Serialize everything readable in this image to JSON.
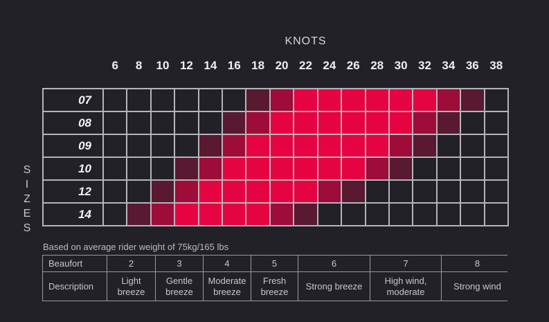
{
  "colors": {
    "background": "#232128",
    "gridline": "#b6b5bb",
    "cell_none": "#232128",
    "cell_low": "#581931",
    "cell_medium": "#9e0c39",
    "cell_ideal": "#e60342",
    "text_bright": "#efeef2",
    "text_dim": "#c8c7cc"
  },
  "axes": {
    "x_title": "KNOTS",
    "y_title": "SIZES",
    "y_title_letters": [
      "S",
      "I",
      "Z",
      "E",
      "S"
    ]
  },
  "note": "Based on average rider weight of 75kg/165 lbs",
  "chart_data": {
    "type": "heatmap",
    "title": "KNOTS",
    "xlabel": "KNOTS",
    "ylabel": "SIZES",
    "x": [
      6,
      8,
      10,
      12,
      14,
      16,
      18,
      20,
      22,
      24,
      26,
      28,
      30,
      32,
      34,
      36,
      38
    ],
    "y": [
      "07",
      "08",
      "09",
      "10",
      "12",
      "14"
    ],
    "values": [
      [
        0,
        0,
        0,
        0,
        0,
        0,
        1,
        2,
        3,
        3,
        3,
        3,
        3,
        3,
        2,
        1,
        0
      ],
      [
        0,
        0,
        0,
        0,
        0,
        1,
        2,
        3,
        3,
        3,
        3,
        3,
        3,
        2,
        1,
        0,
        0
      ],
      [
        0,
        0,
        0,
        0,
        1,
        2,
        3,
        3,
        3,
        3,
        3,
        3,
        2,
        1,
        0,
        0,
        0
      ],
      [
        0,
        0,
        0,
        1,
        2,
        3,
        3,
        3,
        3,
        3,
        3,
        2,
        1,
        0,
        0,
        0,
        0
      ],
      [
        0,
        0,
        1,
        2,
        3,
        3,
        3,
        3,
        3,
        2,
        1,
        0,
        0,
        0,
        0,
        0,
        0
      ],
      [
        0,
        1,
        2,
        3,
        3,
        3,
        3,
        2,
        1,
        0,
        0,
        0,
        0,
        0,
        0,
        0,
        0
      ]
    ],
    "value_scale": {
      "0": "none",
      "1": "low",
      "2": "medium",
      "3": "ideal"
    },
    "cell_colors": {
      "0": "#232128",
      "1": "#581931",
      "2": "#9e0c39",
      "3": "#e60342"
    },
    "grid": true,
    "legend_position": "none"
  },
  "beaufort_table": {
    "row1_header": "Beaufort",
    "row2_header": "Description",
    "numbers": [
      "2",
      "3",
      "4",
      "5",
      "6",
      "7",
      "8"
    ],
    "descriptions": [
      "Light breeze",
      "Gentle breeze",
      "Moderate breeze",
      "Fresh breeze",
      "Strong breeze",
      "High wind, moderate",
      "Strong wind"
    ]
  }
}
